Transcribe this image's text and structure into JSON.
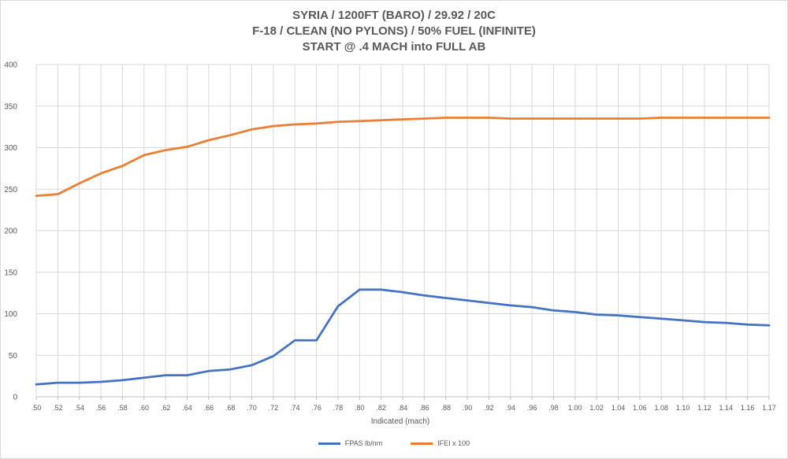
{
  "chart_data": {
    "type": "line",
    "title_lines": [
      "SYRIA / 1200FT (BARO) / 29.92 / 20C",
      "F-18 / CLEAN (NO PYLONS) / 50% FUEL (INFINITE)",
      "START @ .4 MACH into FULL AB"
    ],
    "xlabel": "Indicated (mach)",
    "ylabel": "",
    "categories": [
      ".50",
      ".52",
      ".54",
      ".56",
      ".58",
      ".60",
      ".62",
      ".64",
      ".66",
      ".68",
      ".70",
      ".72",
      ".74",
      ".76",
      ".78",
      ".80",
      ".82",
      ".84",
      ".86",
      ".88",
      ".90",
      ".92",
      ".94",
      ".96",
      ".98",
      "1.00",
      "1.02",
      "1.04",
      "1.06",
      "1.08",
      "1.10",
      "1.12",
      "1.14",
      "1.16",
      "1.17"
    ],
    "ylim": [
      0,
      400
    ],
    "yticks": [
      "0",
      "50",
      "100",
      "150",
      "200",
      "250",
      "300",
      "350",
      "400"
    ],
    "grid": true,
    "legend_position": "bottom",
    "series": [
      {
        "name": "FPAS lb/nm",
        "color": "#4472c4",
        "values": [
          15,
          17,
          17,
          18,
          20,
          23,
          26,
          26,
          31,
          33,
          38,
          49,
          68,
          68,
          109,
          129,
          129,
          126,
          122,
          119,
          116,
          113,
          110,
          108,
          104,
          102,
          99,
          98,
          96,
          94,
          92,
          90,
          89,
          87,
          86
        ]
      },
      {
        "name": "IFEI x 100",
        "color": "#ed7d31",
        "values": [
          242,
          244,
          257,
          269,
          278,
          291,
          297,
          301,
          309,
          315,
          322,
          326,
          328,
          329,
          331,
          332,
          333,
          334,
          335,
          336,
          336,
          336,
          335,
          335,
          335,
          335,
          335,
          335,
          335,
          336,
          336,
          336,
          336,
          336,
          336
        ]
      }
    ]
  }
}
